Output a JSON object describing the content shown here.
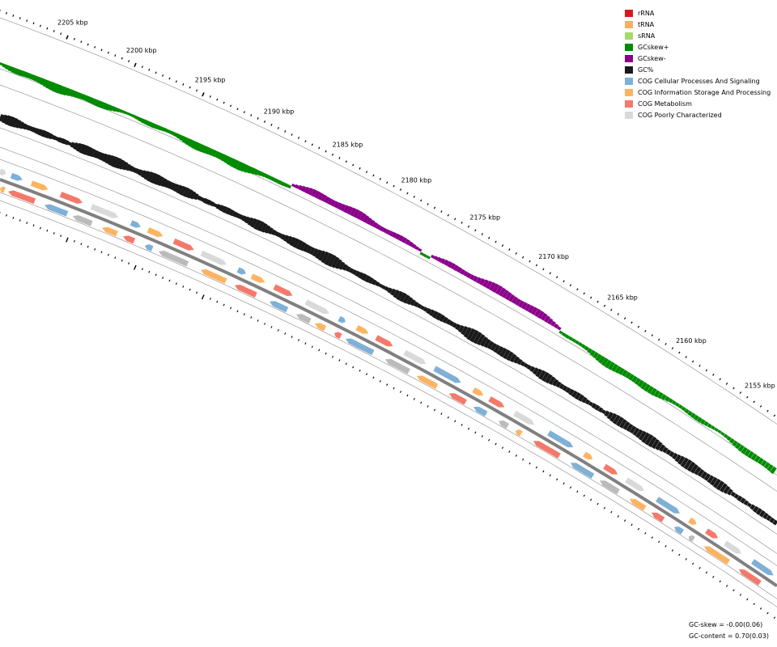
{
  "legend": [
    {
      "label": "rRNA",
      "color": "#d7191c"
    },
    {
      "label": "tRNA",
      "color": "#fdae61"
    },
    {
      "label": "sRNA",
      "color": "#a6d96a"
    },
    {
      "label": "GCskew+",
      "color": "#008b00"
    },
    {
      "label": "GCskew-",
      "color": "#8b008b"
    },
    {
      "label": "GC%",
      "color": "#1a1a1a"
    },
    {
      "label": "COG Cellular Processes And Signaling",
      "color": "#7fb0d6"
    },
    {
      "label": "COG Information Storage And Processing",
      "color": "#fdb462"
    },
    {
      "label": "COG Metabolism",
      "color": "#f4796b"
    },
    {
      "label": "COG Poorly Characterized",
      "color": "#d9d9d9"
    }
  ],
  "scale_labels": [
    "2205 kbp",
    "2200 kbp",
    "2195 kbp",
    "2190 kbp",
    "2185 kbp",
    "2180 kbp",
    "2175 kbp",
    "2170 kbp",
    "2165 kbp",
    "2160 kbp",
    "2155 kbp"
  ],
  "stats": {
    "gc_skew": "GC-skew = -0.00(0.06)",
    "gc_content": "GC-content = 0.70(0.03)"
  },
  "colors": {
    "backbone": "#808080",
    "track_line": "#999999",
    "forward_genes": [
      "#d9d9d9",
      "#7fb0d6",
      "#fdb462",
      "#f4796b"
    ],
    "reverse_genes": [
      "#fdb462",
      "#f4796b",
      "#7fb0d6",
      "#bbbbbb"
    ]
  }
}
